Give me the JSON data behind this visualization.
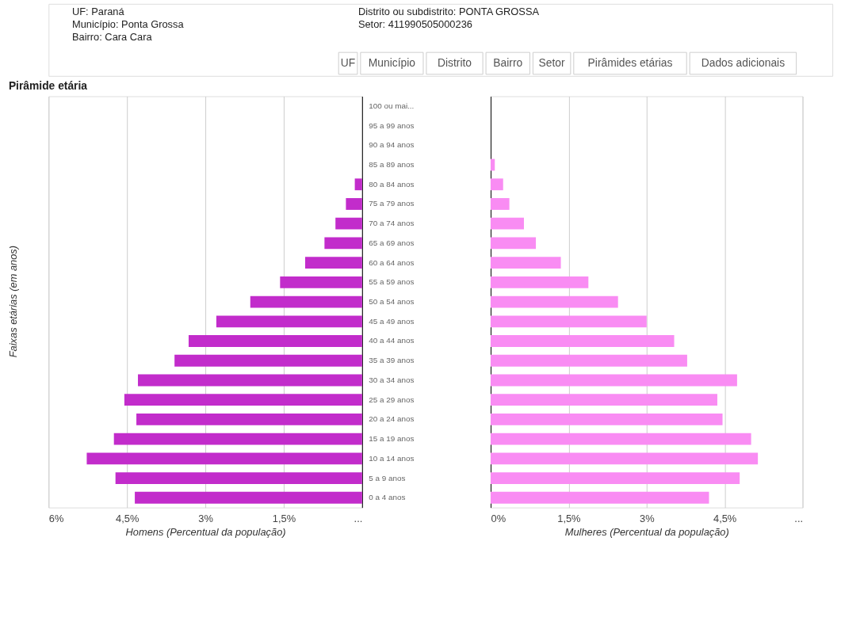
{
  "chart_data": [
    {
      "type": "bar",
      "orientation": "horizontal",
      "title": "Pirâmide etária",
      "ylabel": "Faixas etárias (em anos)",
      "xlabel": "Homens (Percentual da população)",
      "categories": [
        "100 ou mai...",
        "95 a 99 anos",
        "90 a 94 anos",
        "85 a 89 anos",
        "80 a 84 anos",
        "75 a 79 anos",
        "70 a 74 anos",
        "65 a 69 anos",
        "60 a 64 anos",
        "55 a 59 anos",
        "50 a 54 anos",
        "45 a 49 anos",
        "40 a 44 anos",
        "35 a 39 anos",
        "30 a 34 anos",
        "25 a 29 anos",
        "20 a 24 anos",
        "15 a 19 anos",
        "10 a 14 anos",
        "5 a 9 anos",
        "0 a 4 anos"
      ],
      "series": [
        {
          "color": "#c22ccb",
          "values": [
            0,
            0,
            0,
            0,
            0.14,
            0.31,
            0.51,
            0.72,
            1.09,
            1.57,
            2.14,
            2.79,
            3.32,
            3.59,
            4.29,
            4.55,
            4.32,
            4.75,
            5.27,
            4.72,
            4.35
          ]
        }
      ],
      "xlim": [
        6,
        0
      ],
      "xticks": [
        {
          "value": 6,
          "label": "6%"
        },
        {
          "value": 4.5,
          "label": "4,5%"
        },
        {
          "value": 3,
          "label": "3%"
        },
        {
          "value": 1.5,
          "label": "1,5%"
        },
        {
          "value": 0,
          "label": "..."
        }
      ],
      "grid": "x",
      "annotations": [
        "UF: Paraná",
        "Município: Ponta Grossa",
        "Bairro: Cara Cara",
        "Distrito ou subdistrito: PONTA GROSSA",
        "Setor: 411990505000236",
        "UF",
        "Município",
        "Distrito",
        "Bairro",
        "Setor",
        "Pirâmides etárias",
        "Dados adicionais"
      ]
    },
    {
      "type": "bar",
      "orientation": "horizontal",
      "xlabel": "Mulheres (Percentual da população)",
      "categories": [
        null,
        null,
        null,
        null,
        null,
        null,
        null,
        null,
        null,
        null,
        null,
        null,
        null,
        null,
        null,
        null,
        null,
        null,
        null,
        null,
        null
      ],
      "series": [
        {
          "color": "#f98cf3",
          "values": [
            0,
            0,
            0,
            0.08,
            0.24,
            0.36,
            0.64,
            0.87,
            1.35,
            1.88,
            2.45,
            3.0,
            3.53,
            3.78,
            4.74,
            4.36,
            4.46,
            5.01,
            5.14,
            4.79,
            4.2
          ]
        }
      ],
      "xlim": [
        0,
        6
      ],
      "xticks": [
        {
          "value": 0,
          "label": "0%"
        },
        {
          "value": 1.5,
          "label": "1,5%"
        },
        {
          "value": 3,
          "label": "3%"
        },
        {
          "value": 4.5,
          "label": "4,5%"
        },
        {
          "value": 6,
          "label": "..."
        }
      ],
      "grid": "x",
      "tick_labels": "x"
    }
  ]
}
